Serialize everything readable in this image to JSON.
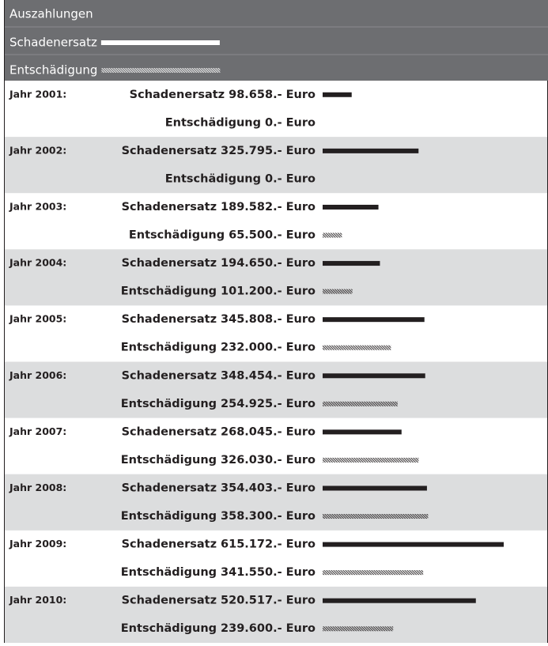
{
  "chart_data": {
    "type": "bar",
    "title": "Auszahlungen",
    "categories": [
      "Jahr 2001:",
      "Jahr 2002:",
      "Jahr 2003:",
      "Jahr 2004:",
      "Jahr 2005:",
      "Jahr 2006:",
      "Jahr 2007:",
      "Jahr 2008:",
      "Jahr 2009:",
      "Jahr 2010:"
    ],
    "series": [
      {
        "name": "Schadenersatz",
        "color": "#231f20",
        "hatched": false,
        "values": [
          98658,
          325795,
          189582,
          194650,
          345808,
          348454,
          268045,
          354403,
          615172,
          520517
        ],
        "value_labels": [
          "98.658.- Euro",
          "325.795.- Euro",
          "189.582.- Euro",
          "194.650.- Euro",
          "345.808.- Euro",
          "348.454.- Euro",
          "268.045.- Euro",
          "354.403.- Euro",
          "615.172.- Euro",
          "520.517.- Euro"
        ]
      },
      {
        "name": "Entschädigung",
        "color": "#231f20",
        "hatched": true,
        "values": [
          0,
          0,
          65500,
          101200,
          232000,
          254925,
          326030,
          358300,
          341550,
          239600
        ],
        "value_labels": [
          "0.- Euro",
          "0.- Euro",
          "65.500.- Euro",
          "101.200.- Euro",
          "232.000.- Euro",
          "254.925.- Euro",
          "326.030.- Euro",
          "358.300.- Euro",
          "341.550.- Euro",
          "239.600.- Euro"
        ]
      }
    ]
  }
}
